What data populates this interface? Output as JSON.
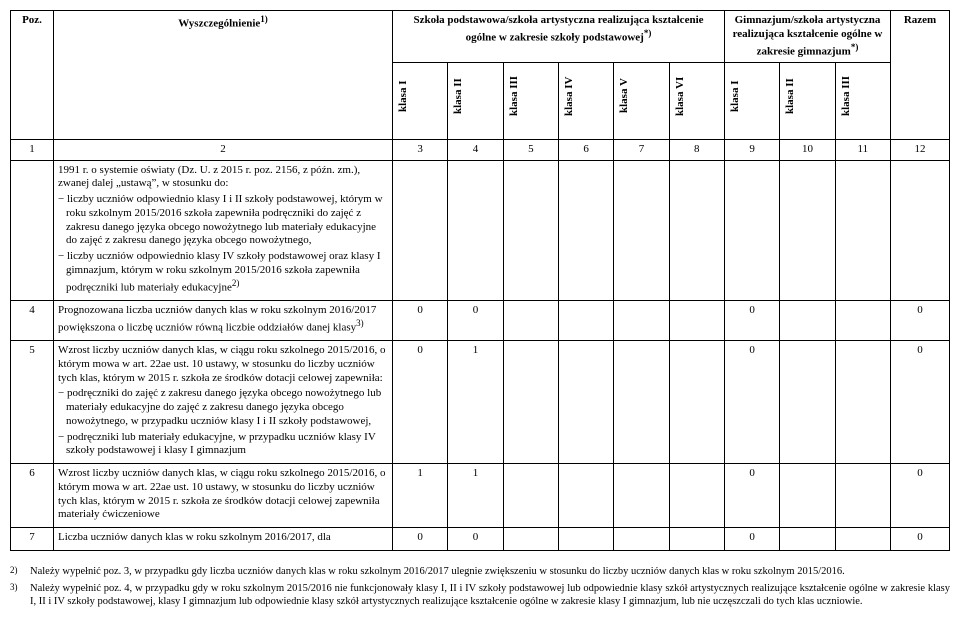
{
  "header": {
    "pos": "Poz.",
    "spec": "Wyszczególnienie",
    "spec_sup": "1)",
    "group1": "Szkoła podstawowa/szkoła artystyczna realizująca kształcenie ogólne w zakresie szkoły podstawowej",
    "group1_sup": "*)",
    "group2": "Gimnazjum/szkoła artystyczna realizująca kształcenie ogólne w zakresie gimnazjum",
    "group2_sup": "*)",
    "razem": "Razem",
    "k1": "klasa I",
    "k2": "klasa II",
    "k3": "klasa III",
    "k4": "klasa IV",
    "k5": "klasa V",
    "k6": "klasa VI",
    "gk1": "klasa I",
    "gk2": "klasa II",
    "gk3": "klasa III"
  },
  "numrow": {
    "c1": "1",
    "c2": "2",
    "c3": "3",
    "c4": "4",
    "c5": "5",
    "c6": "6",
    "c7": "7",
    "c8": "8",
    "c9": "9",
    "c10": "10",
    "c11": "11",
    "c12": "12"
  },
  "rows": [
    {
      "pos": "",
      "text_lines": [
        "1991 r. o systemie oświaty (Dz. U. z 2015 r. poz. 2156, z późn. zm.), zwanej dalej „ustawą”, w stosunku do:",
        "− liczby uczniów odpowiednio klasy I i II szkoły podstawowej, którym w roku szkolnym 2015/2016 szkoła zapewniła podręczniki do zajęć z zakresu danego języka obcego nowożytnego lub materiały edukacyjne do zajęć z zakresu danego języka obcego nowożytnego,",
        "− liczby uczniów odpowiednio klasy IV szkoły podstawowej oraz klasy I gimnazjum, którym w roku szkolnym 2015/2016 szkoła zapewniła podręczniki lub materiały edukacyjne"
      ],
      "text_sup_last": "2)",
      "v3": "",
      "v4": "",
      "v5": "",
      "v6": "",
      "v7": "",
      "v8": "",
      "v9": "",
      "v10": "",
      "v11": "",
      "v12": ""
    },
    {
      "pos": "4",
      "text_lines": [
        "Prognozowana liczba uczniów danych klas w roku szkolnym 2016/2017 powiększona o liczbę uczniów równą liczbie oddziałów danej klasy"
      ],
      "text_sup_last": "3)",
      "v3": "0",
      "v4": "0",
      "v9": "0",
      "v12": "0"
    },
    {
      "pos": "5",
      "text_lines": [
        "Wzrost liczby uczniów danych klas, w ciągu roku szkolnego 2015/2016, o którym mowa w art. 22ae ust. 10 ustawy, w stosunku do liczby uczniów tych klas, którym w 2015 r. szkoła ze środków dotacji celowej zapewniła:",
        "− podręczniki do zajęć z zakresu danego języka obcego nowożytnego lub materiały edukacyjne do zajęć z zakresu danego języka obcego nowożytnego, w przypadku uczniów klasy I i II szkoły podstawowej,",
        "− podręczniki lub materiały edukacyjne, w przypadku uczniów klasy IV szkoły podstawowej i klasy I gimnazjum"
      ],
      "v3": "0",
      "v4": "1",
      "v9": "0",
      "v12": "0"
    },
    {
      "pos": "6",
      "text_lines": [
        "Wzrost liczby uczniów danych klas, w ciągu roku szkolnego 2015/2016, o którym mowa w art. 22ae ust. 10 ustawy, w stosunku do liczby uczniów tych klas, którym w 2015 r. szkoła ze środków dotacji celowej zapewniła materiały ćwiczeniowe"
      ],
      "v3": "1",
      "v4": "1",
      "v9": "0",
      "v12": "0"
    },
    {
      "pos": "7",
      "text_lines": [
        "Liczba uczniów danych klas w roku szkolnym 2016/2017, dla"
      ],
      "v3": "0",
      "v4": "0",
      "v9": "0",
      "v12": "0"
    }
  ],
  "footnotes": [
    {
      "num": "2)",
      "text": "Należy wypełnić poz. 3, w przypadku gdy liczba uczniów danych klas w roku szkolnym 2016/2017 ulegnie zwiększeniu w stosunku do liczby uczniów danych klas w roku szkolnym 2015/2016."
    },
    {
      "num": "3)",
      "text": "Należy wypełnić poz. 4, w przypadku gdy w roku szkolnym 2015/2016 nie funkcjonowały klasy I, II i IV szkoły podstawowej lub odpowiednie klasy szkół artystycznych realizujące kształcenie ogólne w zakresie klasy I, II i IV szkoły podstawowej, klasy I gimnazjum lub odpowiednie klasy szkół artystycznych realizujące kształcenie ogólne w zakresie klasy I gimnazjum, lub nie uczęszczali do tych klas uczniowie."
    }
  ]
}
